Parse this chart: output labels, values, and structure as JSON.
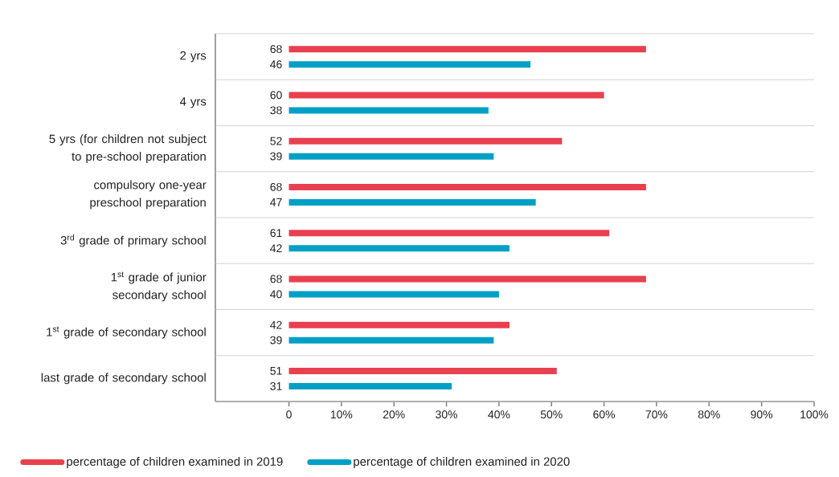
{
  "chart_data": {
    "type": "bar",
    "orientation": "horizontal",
    "categories": [
      "2 yrs",
      "4 yrs",
      "5 yrs (for children not subject to pre-school preparation",
      "compulsory one-year preschool preparation",
      "3$^{rd}$ grade of primary school",
      "1$^{st}$ grade of junior secondary school",
      "1$^{st}$ grade of secondary school",
      "last grade of secondary school"
    ],
    "series": [
      {
        "name": "percentage of children examined in 2019",
        "color": "#e8404f",
        "values": [
          68,
          60,
          52,
          68,
          61,
          68,
          42,
          51
        ]
      },
      {
        "name": "percentage of children examined in 2020",
        "color": "#00a0c6",
        "values": [
          46,
          38,
          39,
          47,
          42,
          40,
          39,
          31
        ]
      }
    ],
    "data_labels": true,
    "xlim": [
      -14,
      100
    ],
    "xticks": [
      0,
      {
        "value": 10,
        "label": "10%"
      },
      {
        "value": 20,
        "label": "20%"
      },
      {
        "value": 30,
        "label": "30%"
      },
      {
        "value": 40,
        "label": "40%"
      },
      {
        "value": 50,
        "label": "50%"
      },
      {
        "value": 60,
        "label": "60%"
      },
      {
        "value": 70,
        "label": "70%"
      },
      {
        "value": 80,
        "label": "80%"
      },
      {
        "value": 90,
        "label": "90%"
      },
      {
        "value": 100,
        "label": "100%"
      }
    ],
    "grid": "y",
    "legend": "bottom"
  }
}
